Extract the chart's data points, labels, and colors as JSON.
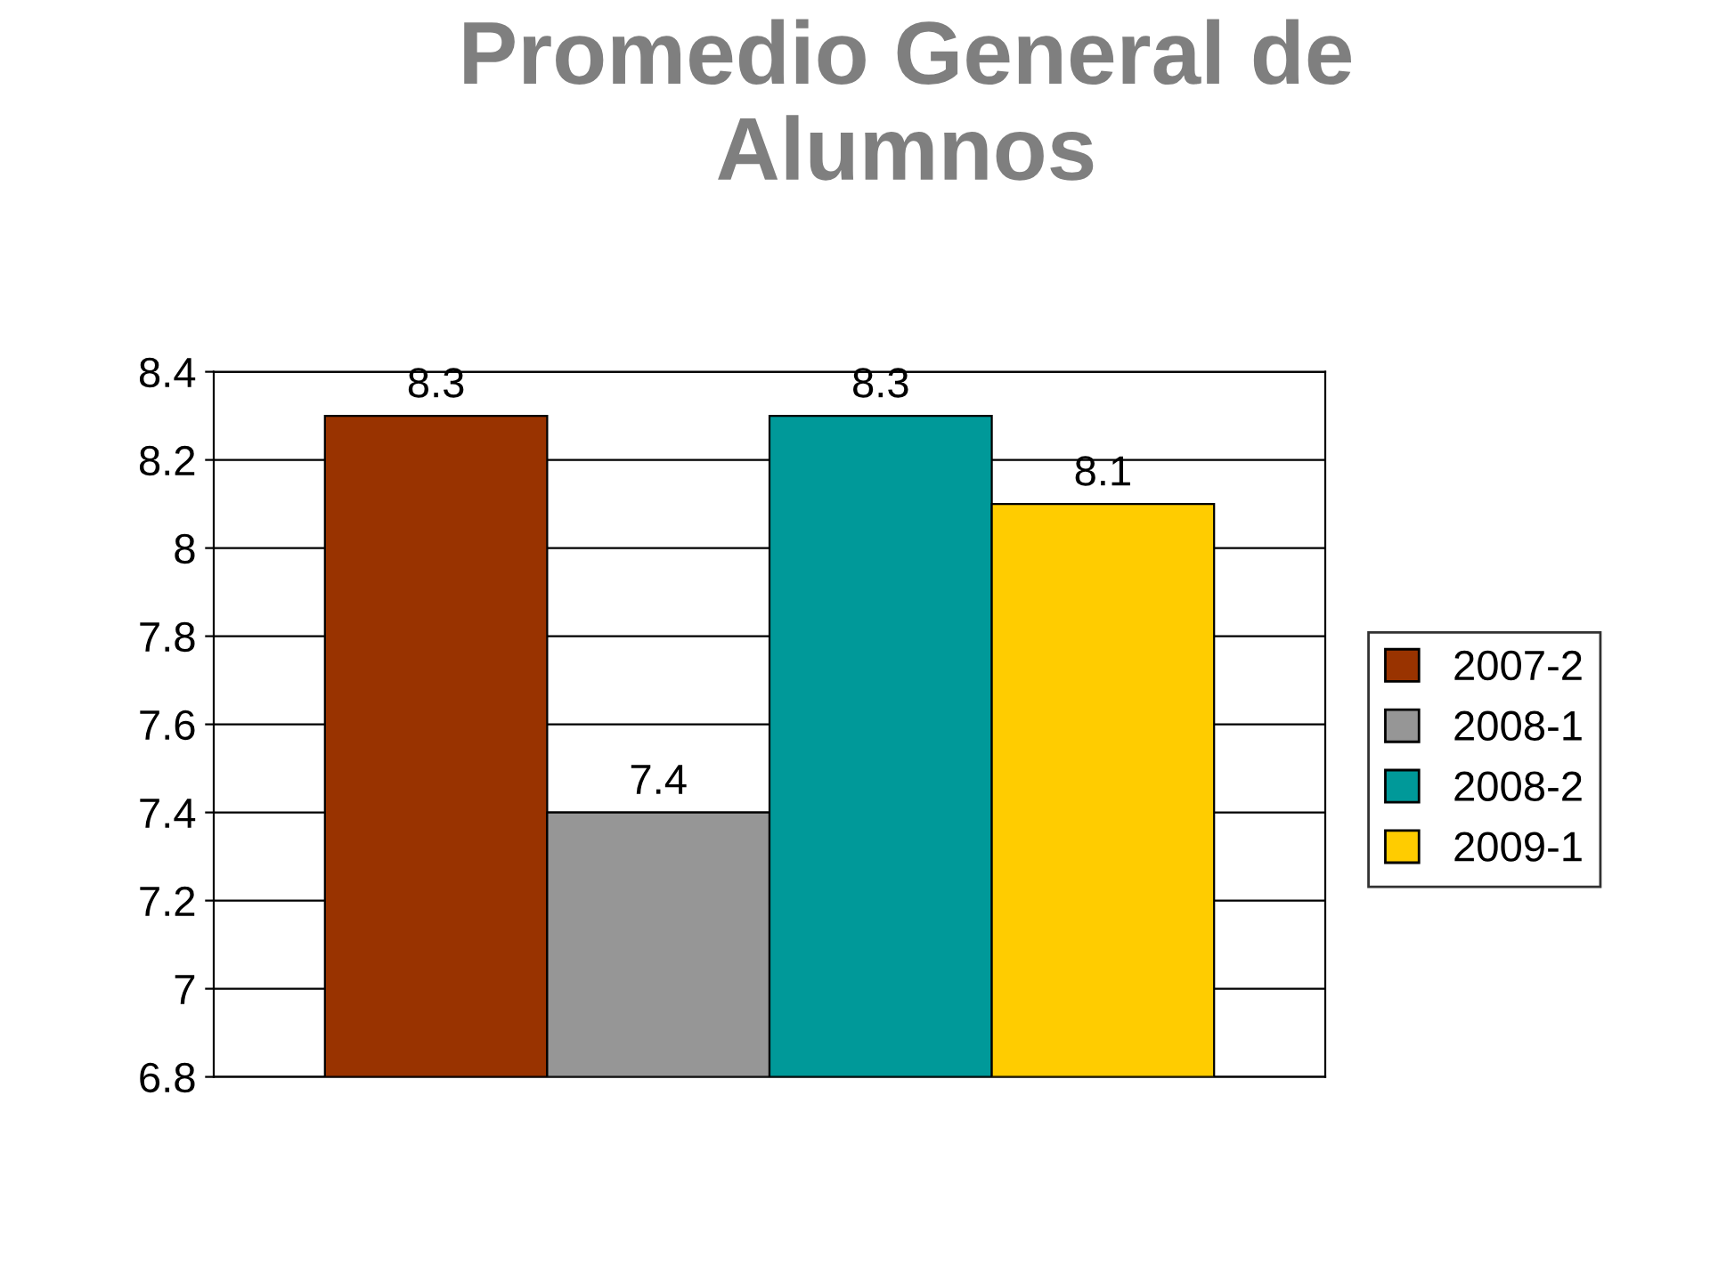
{
  "chart_data": {
    "type": "bar",
    "title": "Promedio General de Alumnos",
    "categories": [
      null
    ],
    "series": [
      {
        "name": "2007-2",
        "color": "#993300",
        "values": [
          8.3
        ]
      },
      {
        "name": "2008-1",
        "color": "#969696",
        "values": [
          7.4
        ]
      },
      {
        "name": "2008-2",
        "color": "#009999",
        "values": [
          8.3
        ]
      },
      {
        "name": "2009-1",
        "color": "#ffcc00",
        "values": [
          8.1
        ]
      }
    ],
    "ylim": [
      6.8,
      8.4
    ],
    "yticks": [
      6.8,
      7,
      7.2,
      7.4,
      7.6,
      7.8,
      8,
      8.2,
      8.4
    ],
    "grid": "y",
    "legend": "right",
    "data_labels": true
  }
}
